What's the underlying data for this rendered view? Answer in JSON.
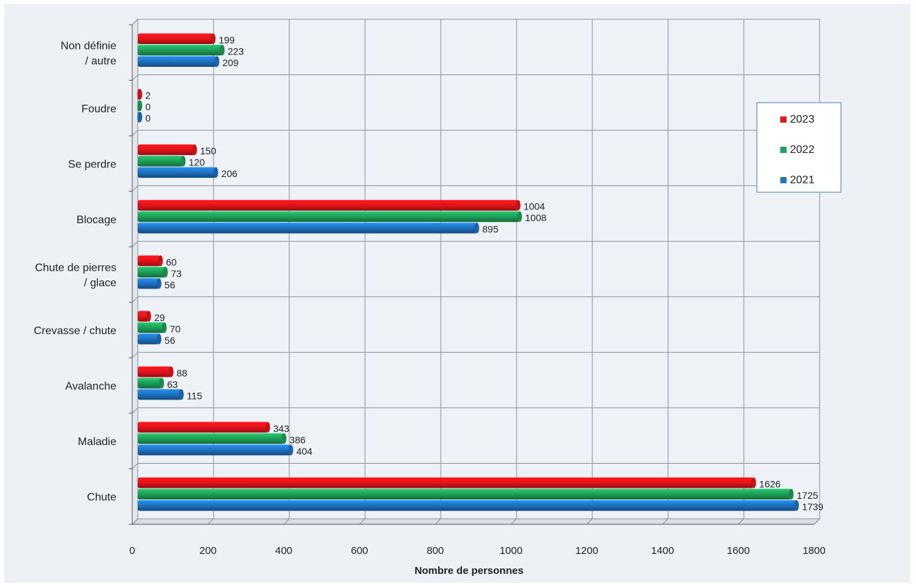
{
  "chart_data": {
    "type": "bar",
    "orientation": "horizontal",
    "categories": [
      "Non définie / autre",
      "Foudre",
      "Se perdre",
      "Blocage",
      "Chute de pierres / glace",
      "Crevasse / chute",
      "Avalanche",
      "Maladie",
      "Chute"
    ],
    "category_lines": [
      [
        "Non définie",
        "/ autre"
      ],
      [
        "Foudre"
      ],
      [
        "Se perdre"
      ],
      [
        "Blocage"
      ],
      [
        "Chute de pierres",
        "/ glace"
      ],
      [
        "Crevasse / chute"
      ],
      [
        "Avalanche"
      ],
      [
        "Maladie"
      ],
      [
        "Chute"
      ]
    ],
    "series": [
      {
        "name": "2023",
        "color": "#e8151b",
        "values": [
          199,
          2,
          150,
          1004,
          60,
          29,
          88,
          343,
          1626
        ]
      },
      {
        "name": "2022",
        "color": "#1ea35a",
        "values": [
          223,
          0,
          120,
          1008,
          73,
          70,
          63,
          386,
          1725
        ]
      },
      {
        "name": "2021",
        "color": "#1f74c4",
        "values": [
          209,
          0,
          206,
          895,
          56,
          56,
          115,
          404,
          1739
        ]
      }
    ],
    "xlabel": "Nombre de personnes",
    "ylabel": "",
    "xlim": [
      0,
      1800
    ],
    "xticks": [
      0,
      200,
      400,
      600,
      800,
      1000,
      1200,
      1400,
      1600,
      1800
    ],
    "grid": true,
    "legend_position": "right"
  }
}
